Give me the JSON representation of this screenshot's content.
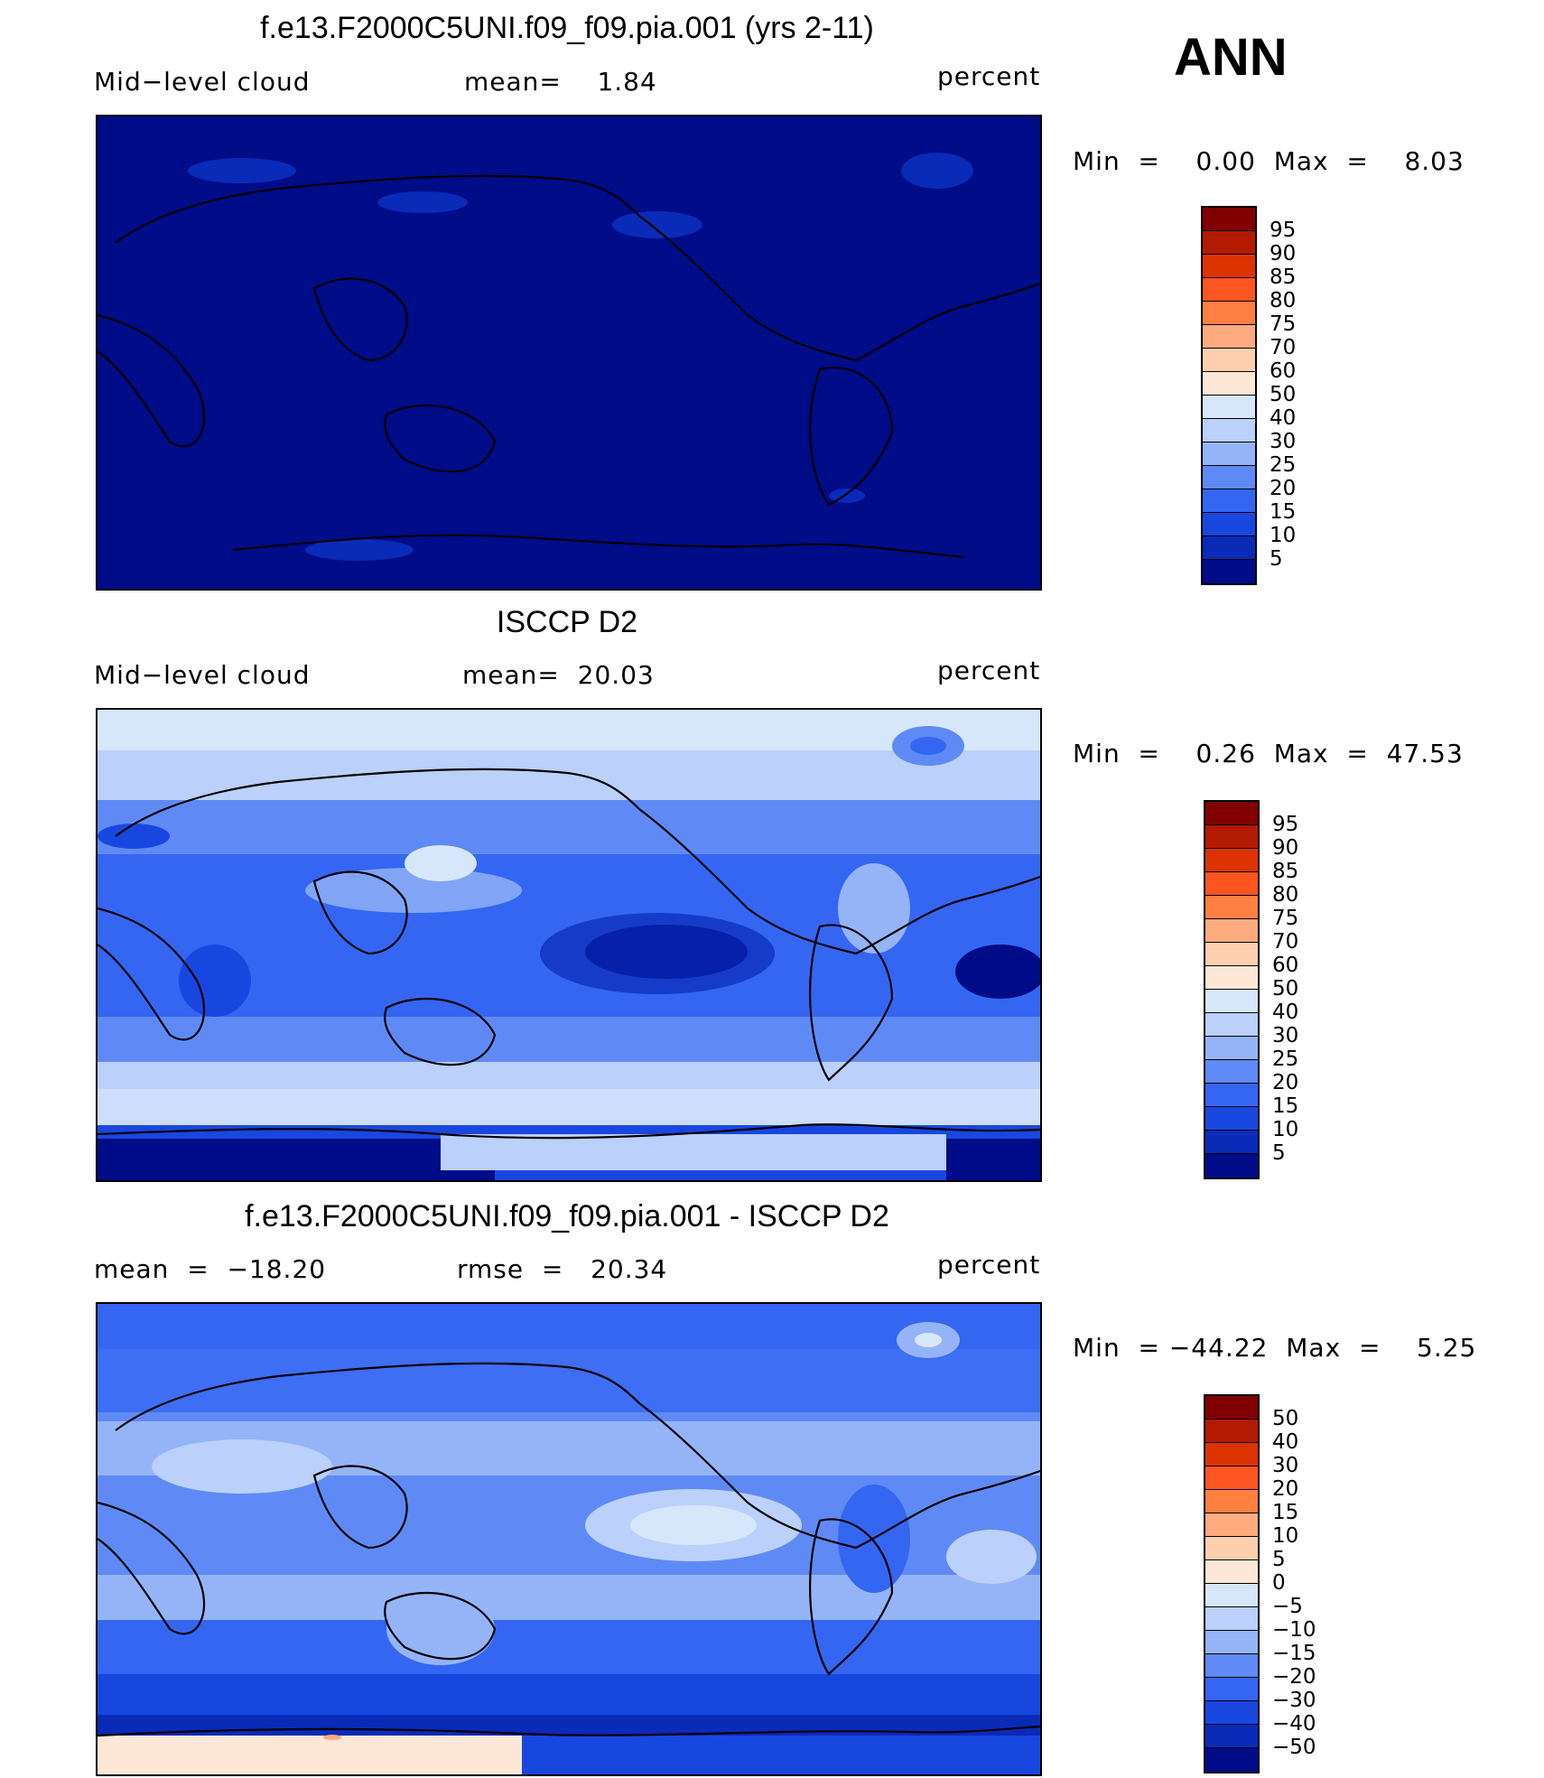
{
  "season": "ANN",
  "panels": [
    {
      "title": "f.e13.F2000C5UNI.f09_f09.pia.001 (yrs 2-11)",
      "left_label": "Mid−level cloud",
      "center_label": "mean=    1.84",
      "right_label": "percent",
      "minmax": "Min  =    0.00  Max  =    8.03"
    },
    {
      "title": "ISCCP D2",
      "left_label": "Mid−level cloud",
      "center_label": "mean=  20.03",
      "right_label": "percent",
      "minmax": "Min  =    0.26  Max  =  47.53"
    },
    {
      "title": "f.e13.F2000C5UNI.f09_f09.pia.001 - ISCCP D2",
      "left_label": "mean  =  −18.20",
      "center_label": "rmse  =   20.34",
      "right_label": "percent",
      "minmax": "Min  = −44.22  Max  =    5.25"
    }
  ],
  "colorbars": {
    "field": {
      "labels": [
        "95",
        "90",
        "85",
        "80",
        "75",
        "70",
        "60",
        "50",
        "40",
        "30",
        "25",
        "20",
        "15",
        "10",
        "5"
      ],
      "colors": [
        "#800000",
        "#b21b00",
        "#dd3300",
        "#ff5520",
        "#ff8040",
        "#ffab80",
        "#ffcfb0",
        "#fde7d6",
        "#d7e7fb",
        "#bbd0fa",
        "#95b4f8",
        "#5f8af5",
        "#3466f2",
        "#1847e0",
        "#0a2ab8",
        "#000c88"
      ]
    },
    "difference": {
      "labels": [
        "50",
        "40",
        "30",
        "20",
        "15",
        "10",
        "5",
        "0",
        "−5",
        "−10",
        "−15",
        "−20",
        "−30",
        "−40",
        "−50"
      ],
      "colors": [
        "#800000",
        "#b21b00",
        "#dd3300",
        "#ff5520",
        "#ff8040",
        "#ffab80",
        "#ffcfb0",
        "#fde7d6",
        "#d7e7fb",
        "#bbd0fa",
        "#95b4f8",
        "#5f8af5",
        "#3466f2",
        "#1847e0",
        "#0a2ab8",
        "#000c88"
      ]
    }
  },
  "chart_data": [
    {
      "type": "heatmap",
      "title": "f.e13.F2000C5UNI.f09_f09.pia.001 (yrs 2-11)",
      "field": "Mid-level cloud",
      "units": "percent",
      "mean": 1.84,
      "min": 0.0,
      "max": 8.03,
      "contour_levels": [
        5,
        10,
        15,
        20,
        25,
        30,
        40,
        50,
        60,
        70,
        75,
        80,
        85,
        90,
        95
      ]
    },
    {
      "type": "heatmap",
      "title": "ISCCP D2",
      "field": "Mid-level cloud",
      "units": "percent",
      "mean": 20.03,
      "min": 0.26,
      "max": 47.53,
      "contour_levels": [
        5,
        10,
        15,
        20,
        25,
        30,
        40,
        50,
        60,
        70,
        75,
        80,
        85,
        90,
        95
      ]
    },
    {
      "type": "heatmap",
      "title": "f.e13.F2000C5UNI.f09_f09.pia.001 - ISCCP D2",
      "units": "percent",
      "mean": -18.2,
      "rmse": 20.34,
      "min": -44.22,
      "max": 5.25,
      "contour_levels": [
        -50,
        -40,
        -30,
        -20,
        -15,
        -10,
        -5,
        0,
        5,
        10,
        15,
        20,
        30,
        40,
        50
      ]
    }
  ]
}
